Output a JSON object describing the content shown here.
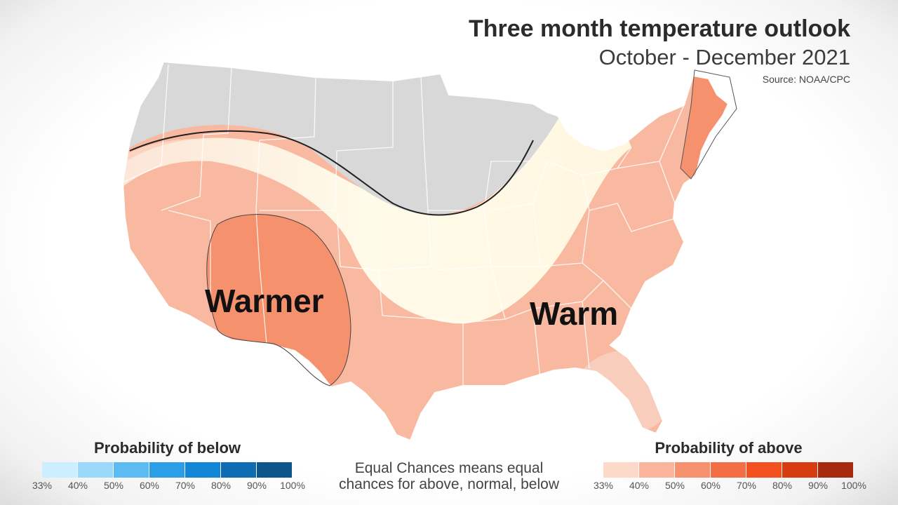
{
  "header": {
    "title": "Three month temperature outlook",
    "subtitle": "October - December 2021",
    "source": "Source: NOAA/CPC"
  },
  "map": {
    "labels": {
      "warmer": "Warmer",
      "warm": "Warm"
    },
    "colors": {
      "below_normal_zone": "#d9d9d9",
      "equal_chances_zone": "#fdf7e6",
      "above_40": "#f9b9a0",
      "above_50": "#f6916e",
      "land_outline": "#ffffff"
    }
  },
  "legend": {
    "below": {
      "title": "Probability of below",
      "colors": [
        "#cdeefe",
        "#9bd9fb",
        "#5cbcf1",
        "#2c9ee8",
        "#1185d6",
        "#0e6cb2",
        "#0c568c"
      ],
      "ticks": [
        "33%",
        "40%",
        "50%",
        "60%",
        "70%",
        "80%",
        "90%",
        "100%"
      ]
    },
    "above": {
      "title": "Probability of above",
      "colors": [
        "#fcd9c8",
        "#f9b49b",
        "#f6916e",
        "#f46e45",
        "#f2501f",
        "#d63c0f",
        "#a52a0b"
      ],
      "ticks": [
        "33%",
        "40%",
        "50%",
        "60%",
        "70%",
        "80%",
        "90%",
        "100%"
      ]
    },
    "note_line1": "Equal Chances means equal",
    "note_line2": "chances for above, normal, below"
  }
}
